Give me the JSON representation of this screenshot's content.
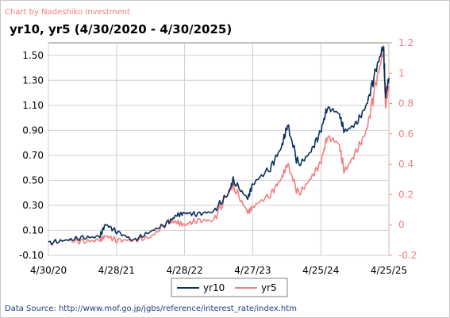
{
  "credit": "Chart by Nadeshiko Investment",
  "source_note": "Data Source: http://www.mof.go.jp/jgbs/reference/interest_rate/index.htm",
  "colors": {
    "yr10": "#0b2f5c",
    "yr5": "#f08080",
    "grid": "#d0d0d0",
    "right_axis": "#f08080"
  },
  "chart_data": {
    "type": "line",
    "title": "yr10, yr5 (4/30/2020 - 4/30/2025)",
    "x_ticks": [
      "4/30/20",
      "4/28/21",
      "4/28/22",
      "4/27/23",
      "4/25/24",
      "4/25/25"
    ],
    "y_left": {
      "ticks": [
        "1.50",
        "1.30",
        "1.10",
        "0.90",
        "0.70",
        "0.50",
        "0.30",
        "0.10",
        "-0.10"
      ],
      "range": [
        -0.1,
        1.6
      ]
    },
    "y_right": {
      "ticks": [
        "1.2",
        "1",
        "0.8",
        "0.6",
        "0.4",
        "0.2",
        "0",
        "-0.2"
      ],
      "range": [
        -0.2,
        1.2
      ]
    },
    "grid": true,
    "legend_position": "bottom",
    "series": [
      {
        "name": "yr10",
        "axis": "left",
        "x": [
          "2020-04-30",
          "2020-07-31",
          "2020-10-30",
          "2021-01-29",
          "2021-03-01",
          "2021-04-30",
          "2021-07-30",
          "2021-10-29",
          "2022-01-31",
          "2022-03-15",
          "2022-04-28",
          "2022-06-30",
          "2022-09-30",
          "2022-12-20",
          "2023-01-13",
          "2023-03-31",
          "2023-04-27",
          "2023-07-31",
          "2023-09-29",
          "2023-10-31",
          "2023-12-29",
          "2024-02-29",
          "2024-04-25",
          "2024-05-30",
          "2024-07-31",
          "2024-08-30",
          "2024-10-31",
          "2024-12-27",
          "2025-02-14",
          "2025-03-27",
          "2025-04-07",
          "2025-04-25"
        ],
        "values": [
          0.0,
          0.02,
          0.04,
          0.05,
          0.15,
          0.09,
          0.02,
          0.09,
          0.16,
          0.22,
          0.24,
          0.23,
          0.25,
          0.4,
          0.5,
          0.35,
          0.47,
          0.6,
          0.77,
          0.94,
          0.62,
          0.72,
          0.89,
          1.08,
          1.04,
          0.89,
          0.95,
          1.1,
          1.38,
          1.58,
          1.17,
          1.32
        ]
      },
      {
        "name": "yr5",
        "axis": "right",
        "x": [
          "2020-04-30",
          "2020-07-31",
          "2020-10-30",
          "2021-01-29",
          "2021-03-01",
          "2021-04-30",
          "2021-07-30",
          "2021-10-29",
          "2022-01-31",
          "2022-03-15",
          "2022-04-28",
          "2022-06-30",
          "2022-09-30",
          "2022-12-20",
          "2023-01-13",
          "2023-03-31",
          "2023-04-27",
          "2023-07-31",
          "2023-09-29",
          "2023-10-31",
          "2023-12-29",
          "2024-02-29",
          "2024-04-25",
          "2024-05-30",
          "2024-07-31",
          "2024-08-30",
          "2024-10-31",
          "2024-12-27",
          "2025-02-14",
          "2025-03-27",
          "2025-04-07",
          "2025-04-25"
        ],
        "values": [
          -0.12,
          -0.1,
          -0.11,
          -0.1,
          -0.07,
          -0.1,
          -0.1,
          -0.08,
          0.02,
          0.02,
          0.0,
          0.03,
          0.03,
          0.22,
          0.26,
          0.08,
          0.12,
          0.2,
          0.31,
          0.4,
          0.2,
          0.3,
          0.41,
          0.58,
          0.54,
          0.35,
          0.48,
          0.62,
          0.93,
          1.15,
          0.78,
          0.92
        ]
      }
    ]
  }
}
